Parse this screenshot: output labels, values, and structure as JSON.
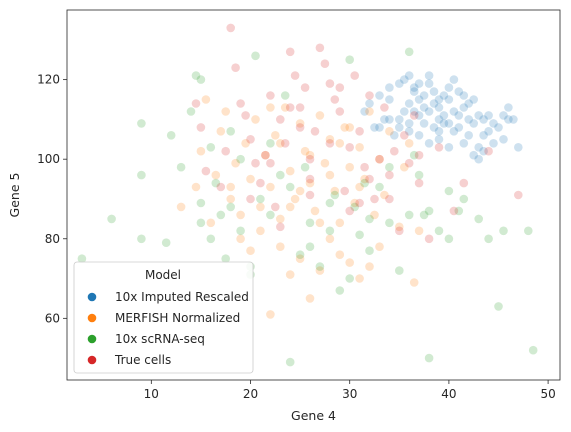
{
  "chart_data": {
    "type": "scatter",
    "xlabel": "Gene 4",
    "ylabel": "Gene 5",
    "xlim": [
      1.5,
      51.2
    ],
    "ylim": [
      44.5,
      137.5
    ],
    "x_ticks": [
      10,
      20,
      30,
      40,
      50
    ],
    "y_ticks": [
      60,
      80,
      100,
      120
    ],
    "x_tick_labels": [
      "10",
      "20",
      "30",
      "40",
      "50"
    ],
    "y_tick_labels": [
      "60",
      "80",
      "100",
      "120"
    ],
    "grid": false,
    "legend": {
      "title": "Model",
      "position": "lower-left"
    },
    "series": [
      {
        "name": "10x Imputed Rescaled",
        "color": "#1f77b4",
        "points": [
          [
            32,
            114
          ],
          [
            33,
            116
          ],
          [
            34,
            118
          ],
          [
            35,
            119
          ],
          [
            35.5,
            120
          ],
          [
            36,
            121
          ],
          [
            36.5,
            118
          ],
          [
            37,
            119
          ],
          [
            37.5,
            116
          ],
          [
            38,
            119
          ],
          [
            38.5,
            117
          ],
          [
            39,
            115
          ],
          [
            39.5,
            116
          ],
          [
            40,
            118
          ],
          [
            40.5,
            120
          ],
          [
            41,
            117
          ],
          [
            41.5,
            116
          ],
          [
            42,
            114
          ],
          [
            34,
            110
          ],
          [
            35,
            110
          ],
          [
            36,
            109
          ],
          [
            36.5,
            112
          ],
          [
            37,
            111
          ],
          [
            37.5,
            113
          ],
          [
            38,
            112
          ],
          [
            38.5,
            114
          ],
          [
            39,
            110
          ],
          [
            39.5,
            111
          ],
          [
            40,
            109
          ],
          [
            40.5,
            112
          ],
          [
            41,
            111
          ],
          [
            41.5,
            113
          ],
          [
            42,
            110
          ],
          [
            42.5,
            109
          ],
          [
            43,
            111
          ],
          [
            43.5,
            110
          ],
          [
            44,
            111
          ],
          [
            44.5,
            109
          ],
          [
            45,
            108
          ],
          [
            45.5,
            111
          ],
          [
            46,
            113
          ],
          [
            46.5,
            110
          ],
          [
            47,
            103
          ],
          [
            43,
            100
          ],
          [
            43.5,
            102
          ],
          [
            42.5,
            101
          ],
          [
            41.5,
            104
          ],
          [
            40,
            103
          ],
          [
            39,
            105
          ],
          [
            38,
            104
          ],
          [
            37,
            106
          ],
          [
            36,
            107
          ],
          [
            35,
            108
          ],
          [
            34.5,
            106
          ],
          [
            33.5,
            110
          ],
          [
            32.5,
            108
          ],
          [
            31.5,
            112
          ],
          [
            36,
            114
          ],
          [
            37,
            115
          ],
          [
            38.5,
            108
          ],
          [
            40.5,
            107
          ],
          [
            42,
            106
          ],
          [
            44,
            107
          ],
          [
            45.5,
            105
          ],
          [
            39.5,
            109
          ],
          [
            43,
            103
          ],
          [
            41,
            108
          ],
          [
            37.5,
            109
          ],
          [
            35.5,
            112
          ],
          [
            38,
            121
          ],
          [
            39,
            113
          ],
          [
            36.5,
            117
          ],
          [
            44.5,
            104
          ],
          [
            42.5,
            115
          ],
          [
            40,
            115
          ],
          [
            34,
            115
          ],
          [
            33,
            108
          ],
          [
            46,
            110
          ],
          [
            43.5,
            106
          ],
          [
            39,
            107
          ]
        ]
      },
      {
        "name": "MERFISH Normalized",
        "color": "#ff7f0e",
        "points": [
          [
            13,
            88
          ],
          [
            14.5,
            93
          ],
          [
            15,
            102
          ],
          [
            15.5,
            115
          ],
          [
            16,
            84
          ],
          [
            16.5,
            96
          ],
          [
            17,
            107
          ],
          [
            17.5,
            112
          ],
          [
            18,
            90
          ],
          [
            18.5,
            99
          ],
          [
            19,
            86
          ],
          [
            19.5,
            104
          ],
          [
            20,
            95
          ],
          [
            20.5,
            110
          ],
          [
            21,
            88
          ],
          [
            21.5,
            101
          ],
          [
            22,
            93
          ],
          [
            22.5,
            106
          ],
          [
            23,
            85
          ],
          [
            23.5,
            113
          ],
          [
            24,
            97
          ],
          [
            24.5,
            90
          ],
          [
            25,
            109
          ],
          [
            25.5,
            102
          ],
          [
            26,
            94
          ],
          [
            26.5,
            87
          ],
          [
            27,
            111
          ],
          [
            27.5,
            99
          ],
          [
            28,
            105
          ],
          [
            28.5,
            92
          ],
          [
            29,
            84
          ],
          [
            29.5,
            108
          ],
          [
            30,
            98
          ],
          [
            30.5,
            89
          ],
          [
            31,
            103
          ],
          [
            31.5,
            95
          ],
          [
            32,
            112
          ],
          [
            32.5,
            86
          ],
          [
            33,
            100
          ],
          [
            33.5,
            91
          ],
          [
            34,
            107
          ],
          [
            35,
            83
          ],
          [
            35.5,
            98
          ],
          [
            36,
            104
          ],
          [
            36.5,
            69
          ],
          [
            37,
            82
          ],
          [
            23,
            78
          ],
          [
            24,
            71
          ],
          [
            25,
            75
          ],
          [
            26,
            65
          ],
          [
            27,
            72
          ],
          [
            28,
            80
          ],
          [
            29,
            76
          ],
          [
            30,
            74
          ],
          [
            31,
            70
          ],
          [
            32,
            73
          ],
          [
            33,
            78
          ],
          [
            22,
            61
          ],
          [
            20,
            77
          ],
          [
            21,
            82
          ],
          [
            19,
            80
          ],
          [
            18,
            93
          ],
          [
            24,
            88
          ],
          [
            26,
            101
          ],
          [
            28,
            96
          ],
          [
            30,
            108
          ],
          [
            25,
            92
          ],
          [
            27,
            84
          ],
          [
            29,
            104
          ],
          [
            31,
            93
          ],
          [
            22,
            113
          ],
          [
            23,
            104
          ]
        ]
      },
      {
        "name": "10x scRNA-seq",
        "color": "#2ca02c",
        "points": [
          [
            3,
            75
          ],
          [
            6,
            85
          ],
          [
            9,
            80
          ],
          [
            9,
            109
          ],
          [
            9,
            96
          ],
          [
            11.5,
            79
          ],
          [
            12,
            106
          ],
          [
            13,
            98
          ],
          [
            14,
            112
          ],
          [
            14.5,
            121
          ],
          [
            15,
            120
          ],
          [
            15,
            89
          ],
          [
            16,
            80
          ],
          [
            16.5,
            94
          ],
          [
            17.5,
            75
          ],
          [
            18,
            88
          ],
          [
            19,
            82
          ],
          [
            20,
            71
          ],
          [
            20.5,
            126
          ],
          [
            21,
            90
          ],
          [
            22,
            86
          ],
          [
            23,
            96
          ],
          [
            23.5,
            116
          ],
          [
            24,
            49
          ],
          [
            25,
            76
          ],
          [
            25.5,
            98
          ],
          [
            26,
            84
          ],
          [
            27,
            73
          ],
          [
            28,
            89
          ],
          [
            28.5,
            91
          ],
          [
            29,
            67
          ],
          [
            30,
            125
          ],
          [
            30.5,
            88
          ],
          [
            31,
            81
          ],
          [
            31.5,
            94
          ],
          [
            32,
            77
          ],
          [
            33,
            93
          ],
          [
            34,
            84
          ],
          [
            35,
            72
          ],
          [
            36,
            127
          ],
          [
            36.5,
            101
          ],
          [
            37,
            96
          ],
          [
            37.5,
            86
          ],
          [
            38,
            50
          ],
          [
            39,
            82
          ],
          [
            40,
            80
          ],
          [
            41,
            87
          ],
          [
            41.5,
            90
          ],
          [
            44,
            80
          ],
          [
            45,
            63
          ],
          [
            45.5,
            82
          ],
          [
            48,
            82
          ],
          [
            48.5,
            52
          ],
          [
            16,
            103
          ],
          [
            18,
            107
          ],
          [
            20,
            73
          ],
          [
            15,
            84
          ],
          [
            17,
            86
          ],
          [
            19,
            100
          ],
          [
            22,
            104
          ],
          [
            24,
            93
          ],
          [
            26,
            78
          ],
          [
            28,
            82
          ],
          [
            30,
            70
          ],
          [
            32,
            85
          ],
          [
            34,
            98
          ],
          [
            36,
            86
          ],
          [
            38,
            87
          ],
          [
            40,
            92
          ],
          [
            43,
            85
          ]
        ]
      },
      {
        "name": "True cells",
        "color": "#d62728",
        "points": [
          [
            14.5,
            114
          ],
          [
            15,
            108
          ],
          [
            15.5,
            97
          ],
          [
            17,
            93
          ],
          [
            17.5,
            102
          ],
          [
            18,
            133
          ],
          [
            18.5,
            123
          ],
          [
            19,
            114
          ],
          [
            19.5,
            111
          ],
          [
            20,
            105
          ],
          [
            20.5,
            99
          ],
          [
            21,
            94
          ],
          [
            21.5,
            101
          ],
          [
            22,
            116
          ],
          [
            22.5,
            88
          ],
          [
            23,
            110
          ],
          [
            23.5,
            104
          ],
          [
            24,
            127
          ],
          [
            24.5,
            121
          ],
          [
            25,
            113
          ],
          [
            25.5,
            118
          ],
          [
            26,
            95
          ],
          [
            26.5,
            107
          ],
          [
            27,
            128
          ],
          [
            27.5,
            124
          ],
          [
            28,
            119
          ],
          [
            28.5,
            115
          ],
          [
            29,
            112
          ],
          [
            29.5,
            92
          ],
          [
            30,
            103
          ],
          [
            30.5,
            121
          ],
          [
            31,
            107
          ],
          [
            31.5,
            98
          ],
          [
            32,
            95
          ],
          [
            32.5,
            90
          ],
          [
            33,
            100
          ],
          [
            33.5,
            113
          ],
          [
            34,
            96
          ],
          [
            34.5,
            102
          ],
          [
            35,
            82
          ],
          [
            35.5,
            106
          ],
          [
            36,
            99
          ],
          [
            36.5,
            111
          ],
          [
            37,
            94
          ],
          [
            38,
            80
          ],
          [
            39,
            103
          ],
          [
            40.5,
            87
          ],
          [
            41.5,
            94
          ],
          [
            44,
            102
          ],
          [
            47,
            91
          ],
          [
            24,
            113
          ],
          [
            25,
            108
          ],
          [
            26,
            100
          ],
          [
            22,
            99
          ],
          [
            29,
            118
          ],
          [
            30,
            87
          ],
          [
            28,
            104
          ],
          [
            32,
            116
          ],
          [
            34,
            90
          ],
          [
            37,
            101
          ],
          [
            20,
            90
          ],
          [
            23,
            83
          ],
          [
            26,
            91
          ],
          [
            31,
            89
          ]
        ]
      }
    ]
  }
}
